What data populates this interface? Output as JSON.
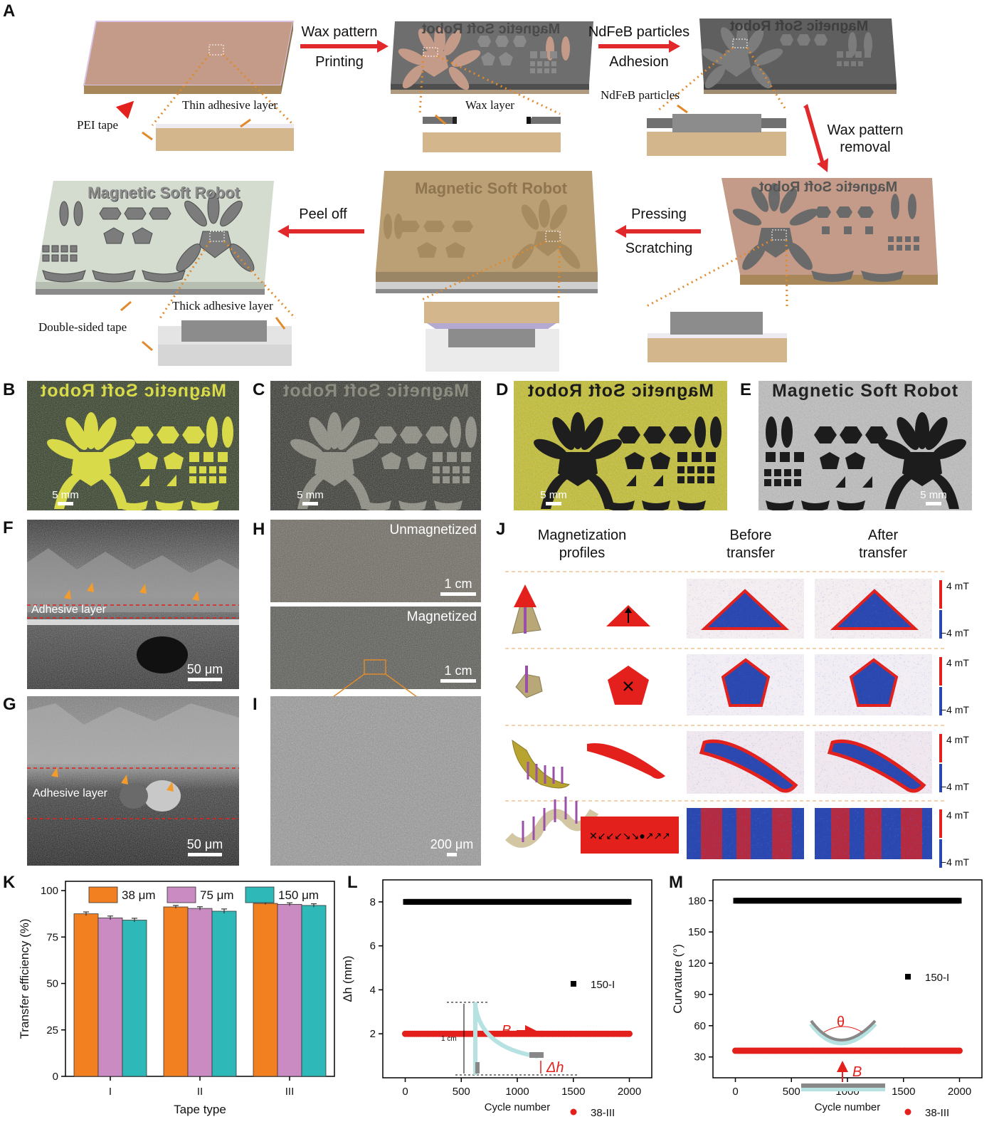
{
  "panel_labels": {
    "A": "A",
    "B": "B",
    "C": "C",
    "D": "D",
    "E": "E",
    "F": "F",
    "G": "G",
    "H": "H",
    "I": "I",
    "J": "J",
    "K": "K",
    "L": "L",
    "M": "M"
  },
  "panel_a": {
    "step1_top": "Wax pattern",
    "step1_bottom": "Printing",
    "step2_top": "NdFeB particles",
    "step2_bottom": "Adhesion",
    "step3_top": "Wax pattern",
    "step3_bottom": "removal",
    "step4_top": "Pressing",
    "step4_bottom": "Scratching",
    "step5": "Peel off",
    "pei_tape": "PEI tape",
    "thin_adhesive": "Thin adhesive layer",
    "wax_layer": "Wax layer",
    "ndfeb_particles": "NdFeB particles",
    "thick_adhesive": "Thick adhesive layer",
    "double_sided_tape": "Double-sided tape",
    "board_text": "Magnetic Soft Robot",
    "colors": {
      "pei": "#c9a08c",
      "wax": "#6e6e6e",
      "tape": "#c8aa80",
      "arrow": "#e1282b",
      "dotted": "#e08a2c"
    }
  },
  "photos": {
    "title": "Magnetic Soft Robot",
    "scale_5mm": "5 mm",
    "scale_50um": "50 μm",
    "scale_1cm": "1 cm",
    "scale_200um": "200 μm",
    "adhesive_layer": "Adhesive layer",
    "unmagnetized": "Unmagnetized",
    "magnetized": "Magnetized"
  },
  "panel_j": {
    "headers": [
      "Magnetization profiles",
      "Before transfer",
      "After transfer"
    ],
    "colorbar_max": "4 mT",
    "colorbar_min": "−4 mT",
    "shapes": [
      "triangle",
      "pentagon",
      "petal",
      "strip"
    ]
  },
  "chart_data": [
    {
      "panel": "K",
      "type": "bar",
      "categories": [
        "I",
        "II",
        "III"
      ],
      "series": [
        {
          "name": "38 μm",
          "values": [
            87.5,
            91.2,
            93.1
          ],
          "errors": [
            1.0,
            0.8,
            0.6
          ],
          "color": "#f28021"
        },
        {
          "name": "75 μm",
          "values": [
            85.3,
            90.4,
            92.6
          ],
          "errors": [
            1.0,
            0.9,
            0.8
          ],
          "color": "#c98bc1"
        },
        {
          "name": "150 μm",
          "values": [
            84.1,
            88.9,
            92.0
          ],
          "errors": [
            1.0,
            1.2,
            0.9
          ],
          "color": "#2eb8b8"
        }
      ],
      "xlabel": "Tape type",
      "ylabel": "Transfer efficiency (%)",
      "ylim": [
        0,
        105
      ],
      "yticks": [
        0,
        25,
        50,
        75,
        100
      ],
      "legend": "top"
    },
    {
      "panel": "L",
      "type": "scatter",
      "series": [
        {
          "name": "150-I",
          "x_range": [
            0,
            2000
          ],
          "y": 8.0,
          "color": "#000000"
        },
        {
          "name": "38-III",
          "x_range": [
            0,
            2000
          ],
          "y": 2.0,
          "color": "#e3201b"
        }
      ],
      "xlabel": "Cycle number",
      "ylabel": "Δh (mm)",
      "xlim": [
        -200,
        2200
      ],
      "ylim": [
        0,
        9
      ],
      "xticks": [
        0,
        500,
        1000,
        1500,
        2000
      ],
      "yticks": [
        2,
        4,
        6,
        8
      ],
      "inset": {
        "length": "1 cm",
        "field": "B",
        "delta": "Δh"
      }
    },
    {
      "panel": "M",
      "type": "scatter",
      "series": [
        {
          "name": "150-I",
          "x_range": [
            0,
            2000
          ],
          "y": 180,
          "color": "#000000"
        },
        {
          "name": "38-III",
          "x_range": [
            0,
            2000
          ],
          "y": 36,
          "color": "#e3201b"
        }
      ],
      "xlabel": "Cycle number",
      "ylabel": "Curvature (°)",
      "xlim": [
        -200,
        2200
      ],
      "ylim": [
        10,
        200
      ],
      "xticks": [
        0,
        500,
        1000,
        1500,
        2000
      ],
      "yticks": [
        30,
        60,
        90,
        120,
        150,
        180
      ],
      "inset": {
        "angle": "θ",
        "field": "B"
      }
    }
  ]
}
